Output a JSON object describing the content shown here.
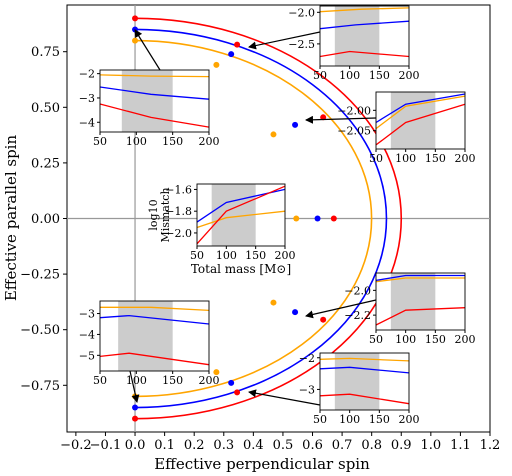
{
  "chart_data": {
    "type": "line",
    "xlabel": "Effective perpendicular spin",
    "ylabel": "Effective parallel spin",
    "xlim": [
      -0.23,
      1.2
    ],
    "ylim": [
      -0.96,
      0.96
    ],
    "xticks": [
      "−0.2",
      "−0.1",
      "0.0",
      "0.1",
      "0.2",
      "0.3",
      "0.4",
      "0.5",
      "0.6",
      "0.7",
      "0.8",
      "0.9",
      "1.0",
      "1.1",
      "1.2"
    ],
    "xtick_values": [
      -0.2,
      -0.1,
      0.0,
      0.1,
      0.2,
      0.3,
      0.4,
      0.5,
      0.6,
      0.7,
      0.8,
      0.9,
      1.0,
      1.1,
      1.2
    ],
    "yticks": [
      "0.75",
      "0.50",
      "0.25",
      "0.00",
      "−0.25",
      "−0.50",
      "−0.75"
    ],
    "ytick_values": [
      0.75,
      0.5,
      0.25,
      0.0,
      -0.25,
      -0.5,
      -0.75
    ],
    "reference_lines": {
      "x": 0.0,
      "y": 0.0,
      "color": "#999999"
    },
    "series": [
      {
        "color": "#ff0000",
        "radius": 0.9,
        "points": [
          [
            0.0,
            0.9
          ],
          [
            0.345,
            0.782
          ],
          [
            0.636,
            0.455
          ],
          [
            0.672,
            0.0
          ],
          [
            0.636,
            -0.455
          ],
          [
            0.345,
            -0.782
          ],
          [
            0.0,
            -0.9
          ]
        ]
      },
      {
        "color": "#0000ff",
        "radius": 0.85,
        "points": [
          [
            0.0,
            0.85
          ],
          [
            0.325,
            0.739
          ],
          [
            0.541,
            0.421
          ],
          [
            0.617,
            0.0
          ],
          [
            0.541,
            -0.421
          ],
          [
            0.325,
            -0.739
          ],
          [
            0.0,
            -0.85
          ]
        ]
      },
      {
        "color": "#ffa500",
        "radius": 0.8,
        "points": [
          [
            0.0,
            0.8
          ],
          [
            0.275,
            0.691
          ],
          [
            0.468,
            0.378
          ],
          [
            0.545,
            0.0
          ],
          [
            0.468,
            -0.378
          ],
          [
            0.275,
            -0.691
          ],
          [
            0.0,
            -0.8
          ]
        ]
      }
    ],
    "insets": [
      {
        "xticks": [
          "50",
          "100",
          "150",
          "200"
        ],
        "yticks": [
          "−2.0",
          "−2.5"
        ],
        "ytick_values": [
          -2.0,
          -2.5
        ],
        "xlim": [
          50,
          200
        ],
        "ylim": [
          -2.85,
          -1.9
        ],
        "shade": [
          75,
          150
        ],
        "curves": {
          "orange": [
            [
              50,
              -1.99
            ],
            [
              120,
              -1.95
            ],
            [
              200,
              -1.93
            ]
          ],
          "blue": [
            [
              50,
              -2.26
            ],
            [
              110,
              -2.2
            ],
            [
              200,
              -2.14
            ]
          ],
          "red": [
            [
              50,
              -2.7
            ],
            [
              100,
              -2.62
            ],
            [
              200,
              -2.7
            ]
          ]
        }
      },
      {
        "xticks": [
          "50",
          "100",
          "150",
          "200"
        ],
        "yticks": [
          "−2",
          "−3",
          "−4"
        ],
        "ytick_values": [
          -2,
          -3,
          -4
        ],
        "xlim": [
          50,
          200
        ],
        "ylim": [
          -4.4,
          -1.85
        ],
        "shade": [
          80,
          150
        ],
        "curves": {
          "orange": [
            [
              50,
              -2.05
            ],
            [
              120,
              -2.1
            ],
            [
              200,
              -2.12
            ]
          ],
          "blue": [
            [
              50,
              -2.55
            ],
            [
              120,
              -2.85
            ],
            [
              200,
              -3.05
            ]
          ],
          "red": [
            [
              50,
              -3.25
            ],
            [
              120,
              -3.8
            ],
            [
              200,
              -4.2
            ]
          ]
        }
      },
      {
        "xticks": [
          "50",
          "100",
          "150",
          "200"
        ],
        "yticks": [
          "−2.00",
          "−2.05"
        ],
        "ytick_values": [
          -2.0,
          -2.05
        ],
        "xlim": [
          50,
          200
        ],
        "ylim": [
          -2.095,
          -1.955
        ],
        "shade": [
          75,
          150
        ],
        "curves": {
          "orange": [
            [
              50,
              -2.045
            ],
            [
              100,
              -1.99
            ],
            [
              200,
              -1.965
            ]
          ],
          "blue": [
            [
              50,
              -2.03
            ],
            [
              100,
              -1.985
            ],
            [
              200,
              -1.96
            ]
          ],
          "red": [
            [
              50,
              -2.085
            ],
            [
              100,
              -2.03
            ],
            [
              200,
              -1.985
            ]
          ]
        }
      },
      {
        "xticks": [
          "50",
          "100",
          "150",
          "200"
        ],
        "yticks": [
          "−1.6",
          "−1.8",
          "−2.0"
        ],
        "ytick_values": [
          -1.6,
          -1.8,
          -2.0
        ],
        "xlim": [
          50,
          200
        ],
        "ylim": [
          -2.12,
          -1.55
        ],
        "shade": [
          75,
          150
        ],
        "xlabel": "Total mass [M⊙]",
        "ylabel_lines": [
          "log10",
          "Mismatch"
        ],
        "curves": {
          "orange": [
            [
              50,
              -1.95
            ],
            [
              100,
              -1.86
            ],
            [
              200,
              -1.8
            ]
          ],
          "blue": [
            [
              50,
              -1.9
            ],
            [
              100,
              -1.72
            ],
            [
              200,
              -1.6
            ]
          ],
          "red": [
            [
              50,
              -2.1
            ],
            [
              100,
              -1.8
            ],
            [
              200,
              -1.57
            ]
          ]
        }
      },
      {
        "xticks": [
          "50",
          "100",
          "150",
          "200"
        ],
        "yticks": [
          "−2.0",
          "−2.2"
        ],
        "ytick_values": [
          -2.0,
          -2.2
        ],
        "xlim": [
          50,
          200
        ],
        "ylim": [
          -2.32,
          -1.86
        ],
        "shade": [
          75,
          150
        ],
        "curves": {
          "orange": [
            [
              50,
              -1.93
            ],
            [
              100,
              -1.9
            ],
            [
              200,
              -1.9
            ]
          ],
          "blue": [
            [
              50,
              -1.92
            ],
            [
              100,
              -1.88
            ],
            [
              200,
              -1.88
            ]
          ],
          "red": [
            [
              50,
              -2.28
            ],
            [
              100,
              -2.16
            ],
            [
              200,
              -2.14
            ]
          ]
        }
      },
      {
        "xticks": [
          "50",
          "100",
          "150",
          "200"
        ],
        "yticks": [
          "−3",
          "−4",
          "−5"
        ],
        "ytick_values": [
          -3,
          -4,
          -5
        ],
        "xlim": [
          50,
          200
        ],
        "ylim": [
          -5.75,
          -2.4
        ],
        "shade": [
          75,
          150
        ],
        "curves": {
          "orange": [
            [
              50,
              -2.7
            ],
            [
              120,
              -2.7
            ],
            [
              200,
              -2.85
            ]
          ],
          "blue": [
            [
              50,
              -3.2
            ],
            [
              90,
              -3.1
            ],
            [
              200,
              -3.5
            ]
          ],
          "red": [
            [
              50,
              -5.05
            ],
            [
              90,
              -4.9
            ],
            [
              200,
              -5.45
            ]
          ]
        }
      },
      {
        "xticks": [
          "50",
          "100",
          "150",
          "200"
        ],
        "yticks": [
          "−2",
          "−3"
        ],
        "ytick_values": [
          -2,
          -3
        ],
        "xlim": [
          50,
          200
        ],
        "ylim": [
          -3.65,
          -1.85
        ],
        "shade": [
          75,
          150
        ],
        "curves": {
          "orange": [
            [
              50,
              -2.05
            ],
            [
              100,
              -2.02
            ],
            [
              200,
              -2.1
            ]
          ],
          "blue": [
            [
              50,
              -2.35
            ],
            [
              100,
              -2.3
            ],
            [
              200,
              -2.48
            ]
          ],
          "red": [
            [
              50,
              -3.2
            ],
            [
              100,
              -3.15
            ],
            [
              200,
              -3.45
            ]
          ]
        }
      }
    ]
  }
}
